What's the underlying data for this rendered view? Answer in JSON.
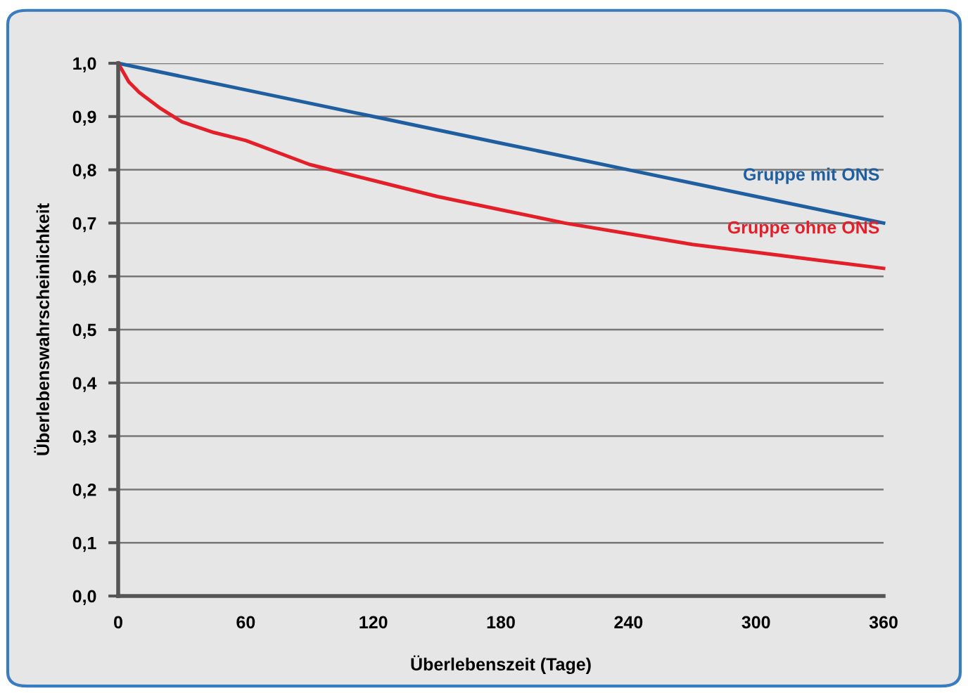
{
  "chart_data": {
    "type": "line",
    "xlabel": "Überlebenszeit (Tage)",
    "ylabel": "Überlebenswahrscheinlichkeit",
    "xlim": [
      0,
      360
    ],
    "xticks": [
      0,
      60,
      120,
      180,
      240,
      300,
      360
    ],
    "ylim": [
      0,
      1
    ],
    "yticks": [
      {
        "value": 0,
        "label": "0,0"
      },
      {
        "value": 0.1,
        "label": "0,1"
      },
      {
        "value": 0.2,
        "label": "0,2"
      },
      {
        "value": 0.3,
        "label": "0,3"
      },
      {
        "value": 0.4,
        "label": "0,4"
      },
      {
        "value": 0.5,
        "label": "0,5"
      },
      {
        "value": 0.6,
        "label": "0,6"
      },
      {
        "value": 0.7,
        "label": "0,7"
      },
      {
        "value": 0.8,
        "label": "0,8"
      },
      {
        "value": 0.9,
        "label": "0,9"
      },
      {
        "value": 1,
        "label": "1,0"
      }
    ],
    "grid": "y",
    "legend": false,
    "series": [
      {
        "name": "Gruppe mit ONS",
        "color": "#1f5fa0",
        "x": [
          0,
          60,
          120,
          180,
          240,
          300,
          360
        ],
        "values": [
          1.0,
          0.95,
          0.9,
          0.85,
          0.8,
          0.75,
          0.7
        ]
      },
      {
        "name": "Gruppe ohne ONS",
        "color": "#e3202a",
        "x": [
          0,
          5,
          10,
          20,
          30,
          45,
          60,
          90,
          120,
          150,
          180,
          210,
          240,
          270,
          300,
          330,
          360
        ],
        "values": [
          1.0,
          0.965,
          0.945,
          0.915,
          0.89,
          0.87,
          0.855,
          0.81,
          0.78,
          0.75,
          0.725,
          0.7,
          0.68,
          0.66,
          0.645,
          0.63,
          0.615
        ]
      }
    ]
  }
}
